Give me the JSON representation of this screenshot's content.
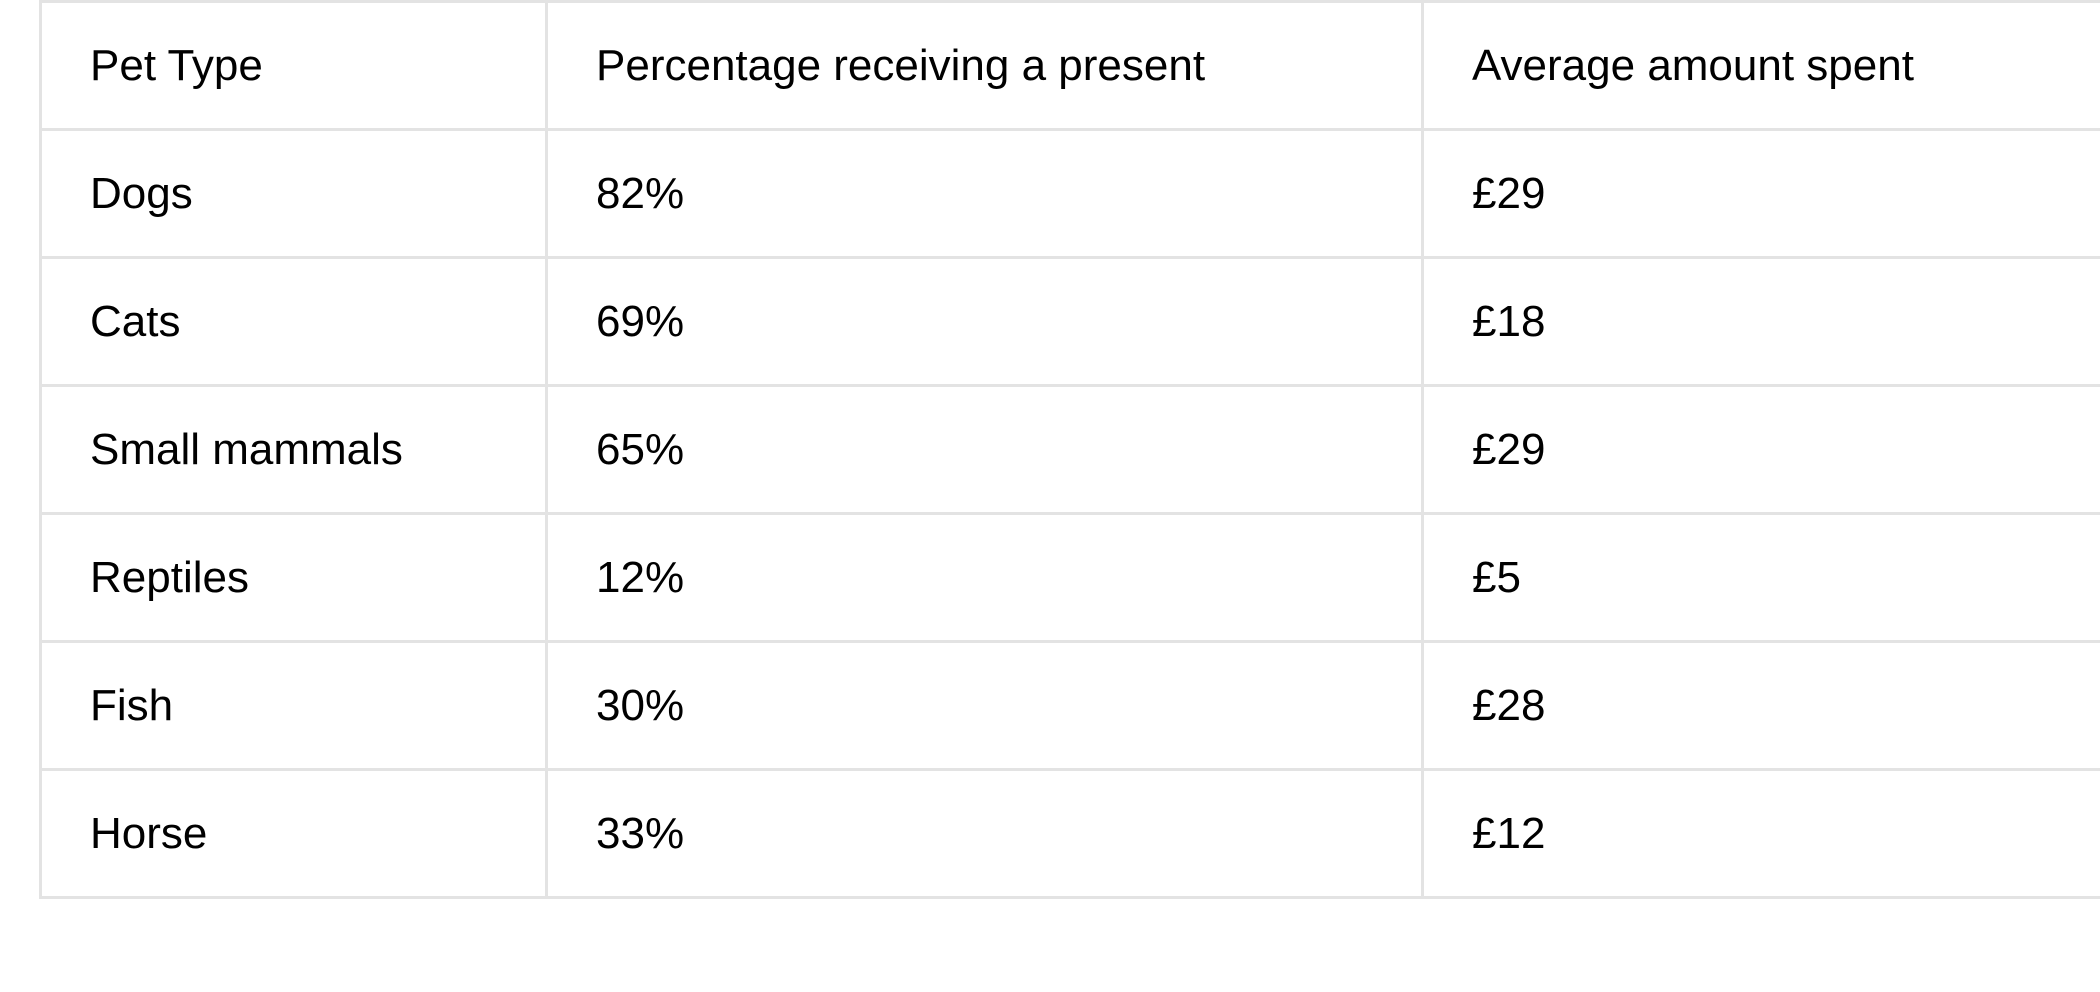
{
  "table": {
    "headers": [
      "Pet Type",
      "Percentage receiving a present",
      "Average amount spent"
    ],
    "rows": [
      [
        "Dogs",
        "82%",
        "£29"
      ],
      [
        "Cats",
        "69%",
        "£18"
      ],
      [
        "Small mammals",
        "65%",
        "£29"
      ],
      [
        "Reptiles",
        "12%",
        "£5"
      ],
      [
        "Fish",
        "30%",
        "£28"
      ],
      [
        "Horse",
        "33%",
        "£12"
      ]
    ]
  },
  "colors": {
    "border": "#e3e3e3",
    "text": "#000000",
    "background": "#ffffff"
  }
}
